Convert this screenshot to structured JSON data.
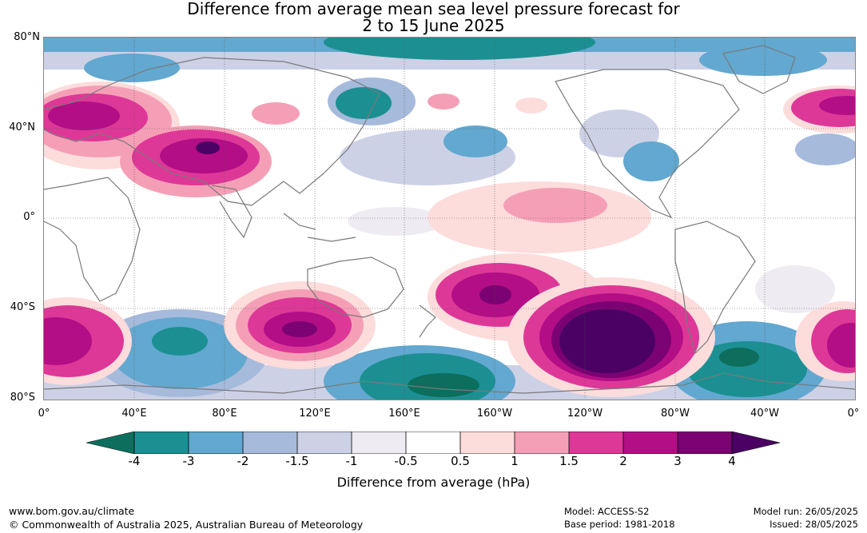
{
  "title": {
    "line1": "Difference from average mean sea level pressure forecast for",
    "line2": "2 to 15 June 2025"
  },
  "axes": {
    "latitude_labels": [
      "80°N",
      "40°N",
      "0°",
      "40°S",
      "80°S"
    ],
    "longitude_labels": [
      "0°",
      "40°E",
      "80°E",
      "120°E",
      "160°E",
      "160°W",
      "120°W",
      "80°W",
      "40°W",
      "0°"
    ]
  },
  "colorbar": {
    "label": "Difference from average (hPa)",
    "ticks": [
      "-4",
      "-3",
      "-2",
      "-1.5",
      "-1",
      "-0.5",
      "0.5",
      "1",
      "1.5",
      "2",
      "3",
      "4"
    ],
    "colors": {
      "lt_-4": "#0d6e5e",
      "-4_-3": "#1c8f92",
      "-3_-2": "#62a8d0",
      "-2_-1.5": "#a6badb",
      "-1.5_-1": "#cdd1e6",
      "-1_-0.5": "#efebf3",
      "-0.5_0.5": "#ffffff",
      "0.5_1": "#fddcdc",
      "1_1.5": "#f59fb6",
      "1.5_2": "#dd3897",
      "2_3": "#b30e86",
      "3_4": "#7b0273",
      "gt_4": "#4a0163"
    }
  },
  "footer": {
    "url": "www.bom.gov.au/climate",
    "copyright": "© Commonwealth of Australia 2025, Australian Bureau of Meteorology",
    "model": "Model: ACCESS-S2",
    "base_period": "Base period: 1981-2018",
    "model_run": "Model run: 26/05/2025",
    "issued": "Issued: 28/05/2025"
  }
}
